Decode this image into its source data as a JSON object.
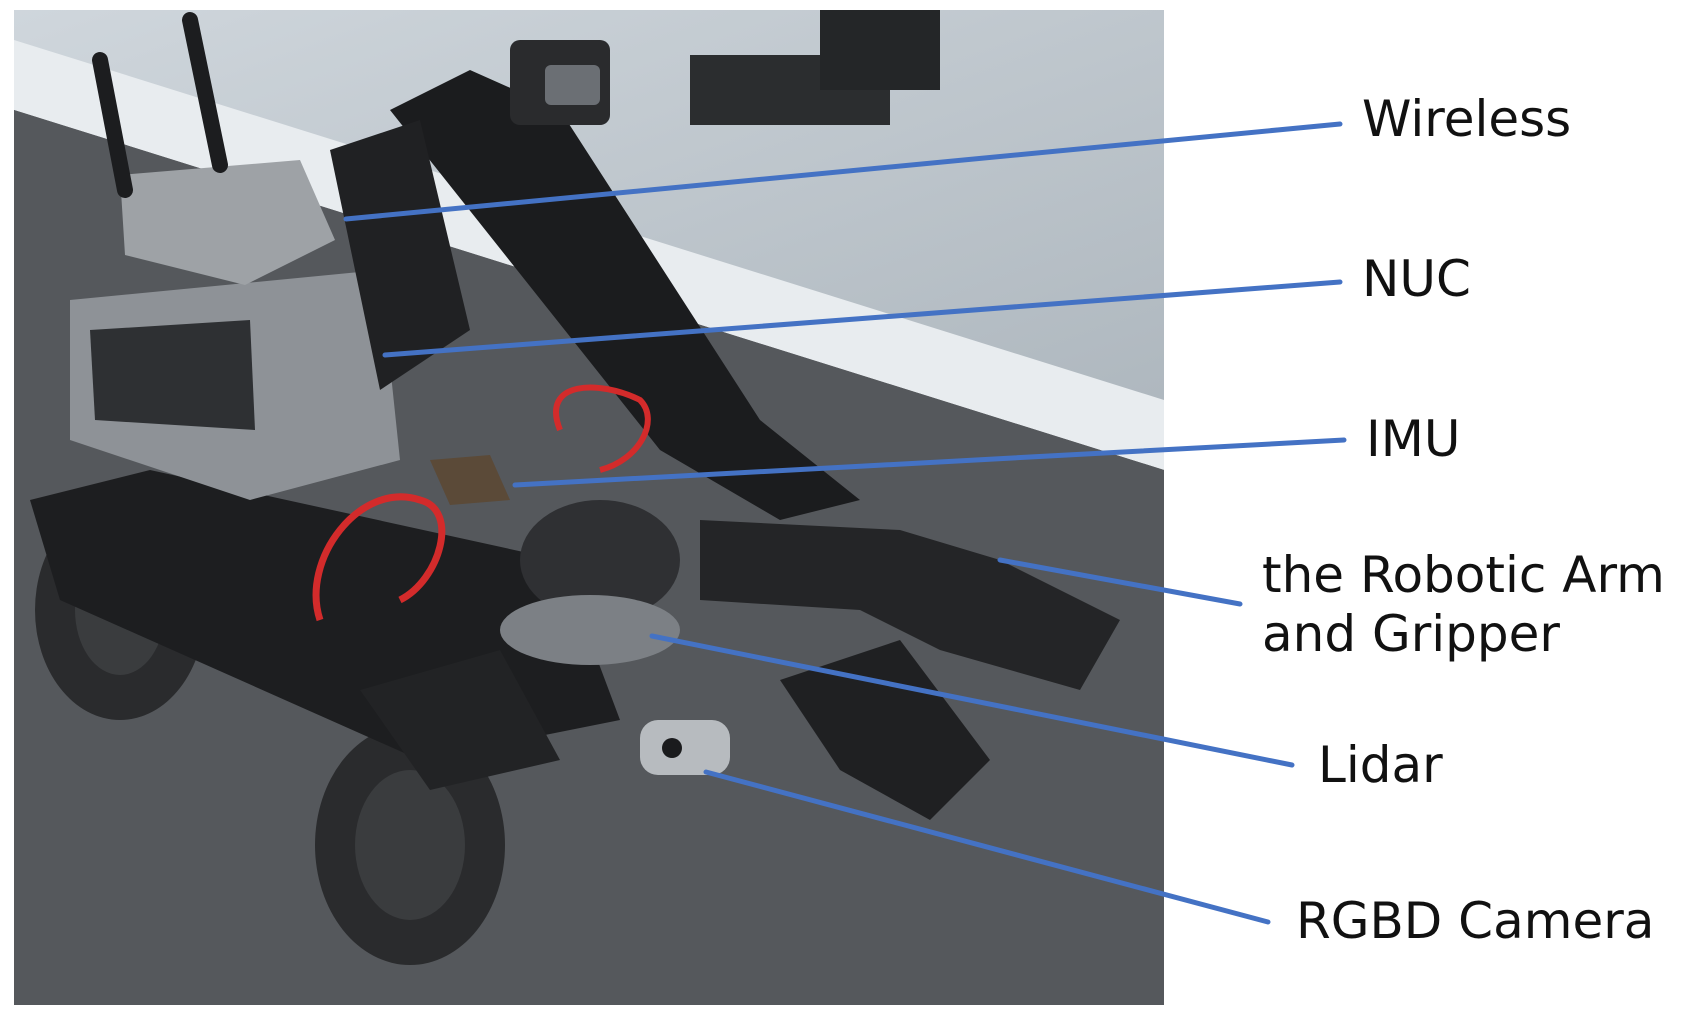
{
  "labels": {
    "wireless": "Wireless",
    "nuc": "NUC",
    "imu": "IMU",
    "arm": {
      "line1": "the Robotic Arm",
      "line2": "and Gripper"
    },
    "lidar": "Lidar",
    "rgbd": "RGBD Camera"
  },
  "colors": {
    "leader": "#4472c4",
    "text": "#111111",
    "background": "#ffffff"
  }
}
